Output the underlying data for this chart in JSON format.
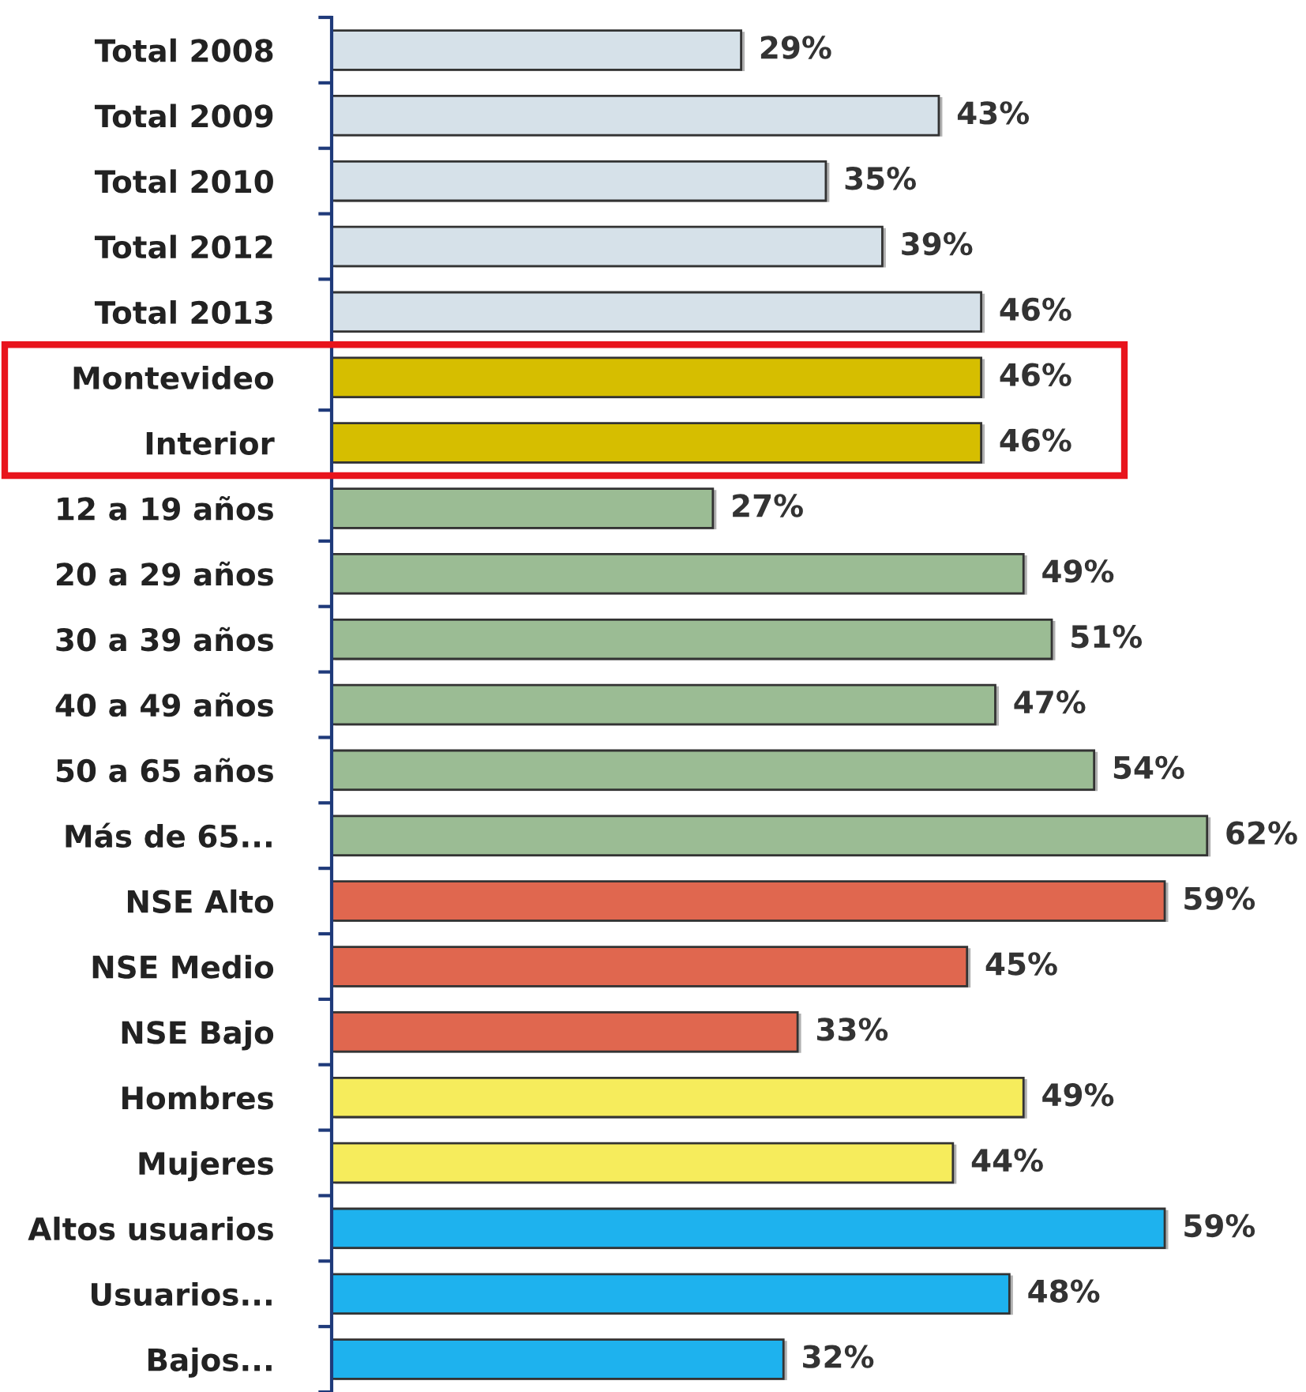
{
  "chart_data": {
    "type": "bar",
    "orientation": "horizontal",
    "categories": [
      "Total 2008",
      "Total 2009",
      "Total 2010",
      "Total 2012",
      "Total 2013",
      "Montevideo",
      "Interior",
      "12 a 19 años",
      "20 a 29 años",
      "30 a 39 años",
      "40 a 49 años",
      "50 a 65 años",
      "Más de 65...",
      "NSE Alto",
      "NSE Medio",
      "NSE Bajo",
      "Hombres",
      "Mujeres",
      "Altos usuarios",
      "Usuarios...",
      "Bajos..."
    ],
    "values": [
      29,
      43,
      35,
      39,
      46,
      46,
      46,
      27,
      49,
      51,
      47,
      54,
      62,
      59,
      45,
      33,
      49,
      44,
      59,
      48,
      32
    ],
    "value_labels": [
      "29%",
      "43%",
      "35%",
      "39%",
      "46%",
      "46%",
      "46%",
      "27%",
      "49%",
      "51%",
      "47%",
      "54%",
      "62%",
      "59%",
      "45%",
      "33%",
      "49%",
      "44%",
      "59%",
      "48%",
      "32%"
    ],
    "colors": [
      "#d6e1e9",
      "#d6e1e9",
      "#d6e1e9",
      "#d6e1e9",
      "#d6e1e9",
      "#d6be00",
      "#d6be00",
      "#9bbc94",
      "#9bbc94",
      "#9bbc94",
      "#9bbc94",
      "#9bbc94",
      "#9bbc94",
      "#e0674f",
      "#e0674f",
      "#e0674f",
      "#f6ec5c",
      "#f6ec5c",
      "#1eb2ee",
      "#1eb2ee",
      "#1eb2ee"
    ],
    "tick_labels": "y",
    "grid": false,
    "legend": false
  }
}
